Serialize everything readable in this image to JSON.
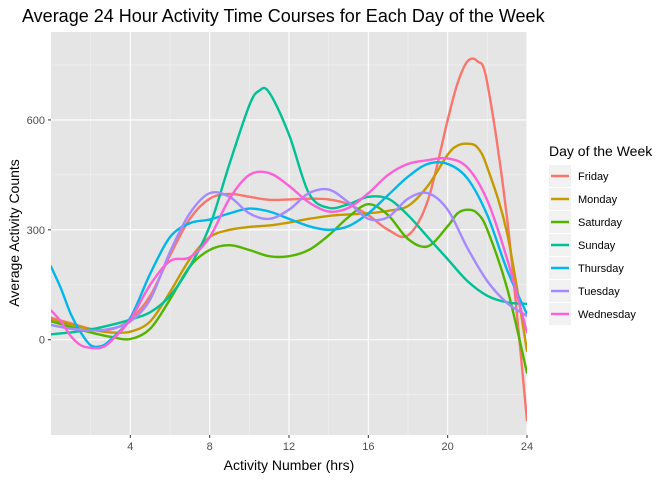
{
  "chart_data": {
    "type": "line",
    "title": "Average 24 Hour Activity Time Courses for Each Day of the Week",
    "xlabel": "Activity Number (hrs)",
    "ylabel": "Average Activity Counts",
    "xlim": [
      0,
      24
    ],
    "ylim": [
      -260,
      840
    ],
    "x_ticks": [
      4,
      8,
      12,
      16,
      20,
      24
    ],
    "y_ticks": [
      0,
      300,
      600
    ],
    "grid": true,
    "background": "#e5e5e5",
    "legend": {
      "title": "Day of the Week",
      "position": "right"
    },
    "series": [
      {
        "name": "Friday",
        "color": "#F8766D",
        "points": [
          [
            0,
            60
          ],
          [
            1,
            45
          ],
          [
            2,
            30
          ],
          [
            3,
            28
          ],
          [
            4,
            55
          ],
          [
            5,
            120
          ],
          [
            6,
            230
          ],
          [
            7,
            330
          ],
          [
            8,
            385
          ],
          [
            9,
            398
          ],
          [
            10,
            390
          ],
          [
            11,
            382
          ],
          [
            12,
            383
          ],
          [
            13,
            385
          ],
          [
            14,
            383
          ],
          [
            15,
            370
          ],
          [
            16,
            340
          ],
          [
            17,
            300
          ],
          [
            18,
            285
          ],
          [
            19,
            380
          ],
          [
            20,
            600
          ],
          [
            20.5,
            700
          ],
          [
            21,
            760
          ],
          [
            21.5,
            760
          ],
          [
            22,
            700
          ],
          [
            23,
            330
          ],
          [
            24,
            -220
          ]
        ]
      },
      {
        "name": "Monday",
        "color": "#C49A00",
        "points": [
          [
            0,
            55
          ],
          [
            1,
            42
          ],
          [
            2,
            28
          ],
          [
            3,
            20
          ],
          [
            4,
            22
          ],
          [
            5,
            50
          ],
          [
            6,
            130
          ],
          [
            7,
            220
          ],
          [
            8,
            280
          ],
          [
            9,
            300
          ],
          [
            10,
            308
          ],
          [
            11,
            312
          ],
          [
            12,
            320
          ],
          [
            13,
            330
          ],
          [
            14,
            338
          ],
          [
            15,
            342
          ],
          [
            16,
            345
          ],
          [
            17,
            352
          ],
          [
            18,
            365
          ],
          [
            19,
            420
          ],
          [
            20,
            505
          ],
          [
            20.5,
            530
          ],
          [
            21,
            535
          ],
          [
            21.5,
            525
          ],
          [
            22,
            470
          ],
          [
            23,
            290
          ],
          [
            24,
            -30
          ]
        ]
      },
      {
        "name": "Saturday",
        "color": "#53B400",
        "points": [
          [
            0,
            50
          ],
          [
            1,
            35
          ],
          [
            2,
            20
          ],
          [
            3,
            8
          ],
          [
            4,
            2
          ],
          [
            5,
            30
          ],
          [
            6,
            110
          ],
          [
            7,
            200
          ],
          [
            8,
            245
          ],
          [
            9,
            258
          ],
          [
            10,
            245
          ],
          [
            11,
            228
          ],
          [
            12,
            228
          ],
          [
            13,
            245
          ],
          [
            14,
            285
          ],
          [
            15,
            335
          ],
          [
            16,
            370
          ],
          [
            17,
            340
          ],
          [
            18,
            275
          ],
          [
            19,
            255
          ],
          [
            20,
            310
          ],
          [
            20.5,
            345
          ],
          [
            21,
            355
          ],
          [
            21.5,
            345
          ],
          [
            22,
            300
          ],
          [
            23,
            140
          ],
          [
            24,
            -90
          ]
        ]
      },
      {
        "name": "Sunday",
        "color": "#00C094",
        "points": [
          [
            0,
            15
          ],
          [
            1,
            20
          ],
          [
            2,
            28
          ],
          [
            3,
            40
          ],
          [
            4,
            55
          ],
          [
            5,
            75
          ],
          [
            6,
            120
          ],
          [
            7,
            200
          ],
          [
            8,
            310
          ],
          [
            9,
            480
          ],
          [
            10,
            640
          ],
          [
            10.5,
            680
          ],
          [
            11,
            675
          ],
          [
            12,
            560
          ],
          [
            13,
            400
          ],
          [
            14,
            360
          ],
          [
            15,
            370
          ],
          [
            16,
            390
          ],
          [
            17,
            385
          ],
          [
            18,
            340
          ],
          [
            19,
            280
          ],
          [
            20,
            220
          ],
          [
            21,
            160
          ],
          [
            22,
            120
          ],
          [
            23,
            102
          ],
          [
            24,
            98
          ]
        ]
      },
      {
        "name": "Thursday",
        "color": "#00B6EB",
        "points": [
          [
            0,
            200
          ],
          [
            0.5,
            140
          ],
          [
            1,
            70
          ],
          [
            1.5,
            20
          ],
          [
            2,
            -15
          ],
          [
            2.5,
            -18
          ],
          [
            3,
            0
          ],
          [
            4,
            60
          ],
          [
            5,
            180
          ],
          [
            6,
            280
          ],
          [
            7,
            318
          ],
          [
            8,
            328
          ],
          [
            9,
            345
          ],
          [
            10,
            358
          ],
          [
            11,
            350
          ],
          [
            12,
            330
          ],
          [
            13,
            310
          ],
          [
            14,
            300
          ],
          [
            15,
            310
          ],
          [
            16,
            345
          ],
          [
            17,
            395
          ],
          [
            18,
            445
          ],
          [
            19,
            480
          ],
          [
            20,
            480
          ],
          [
            21,
            440
          ],
          [
            22,
            340
          ],
          [
            23,
            190
          ],
          [
            24,
            70
          ]
        ]
      },
      {
        "name": "Tuesday",
        "color": "#A58AFF",
        "points": [
          [
            0,
            40
          ],
          [
            1,
            30
          ],
          [
            2,
            25
          ],
          [
            3,
            30
          ],
          [
            4,
            50
          ],
          [
            5,
            110
          ],
          [
            6,
            240
          ],
          [
            7,
            345
          ],
          [
            8,
            400
          ],
          [
            9,
            390
          ],
          [
            10,
            345
          ],
          [
            11,
            330
          ],
          [
            12,
            355
          ],
          [
            13,
            400
          ],
          [
            14,
            410
          ],
          [
            15,
            375
          ],
          [
            16,
            330
          ],
          [
            17,
            335
          ],
          [
            18,
            385
          ],
          [
            19,
            400
          ],
          [
            20,
            355
          ],
          [
            21,
            250
          ],
          [
            22,
            160
          ],
          [
            23,
            100
          ],
          [
            24,
            65
          ]
        ]
      },
      {
        "name": "Wednesday",
        "color": "#FB61D7",
        "points": [
          [
            0,
            80
          ],
          [
            0.5,
            50
          ],
          [
            1,
            10
          ],
          [
            1.5,
            -15
          ],
          [
            2,
            -22
          ],
          [
            2.5,
            -22
          ],
          [
            3,
            -5
          ],
          [
            4,
            55
          ],
          [
            5,
            150
          ],
          [
            6,
            215
          ],
          [
            7,
            225
          ],
          [
            8,
            280
          ],
          [
            9,
            385
          ],
          [
            10,
            450
          ],
          [
            11,
            455
          ],
          [
            12,
            420
          ],
          [
            13,
            375
          ],
          [
            14,
            350
          ],
          [
            15,
            360
          ],
          [
            16,
            400
          ],
          [
            17,
            450
          ],
          [
            18,
            480
          ],
          [
            19,
            490
          ],
          [
            20,
            495
          ],
          [
            21,
            470
          ],
          [
            22,
            380
          ],
          [
            23,
            220
          ],
          [
            24,
            20
          ]
        ]
      }
    ]
  }
}
